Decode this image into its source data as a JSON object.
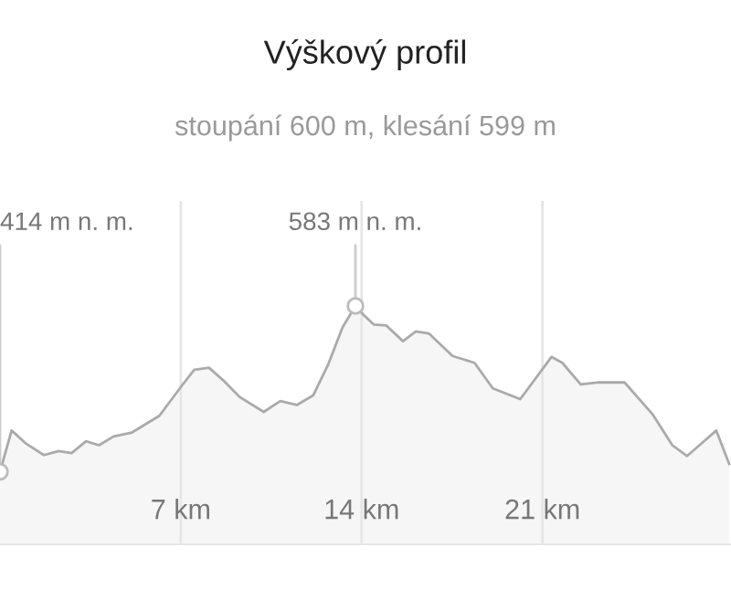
{
  "chart_data": {
    "type": "area",
    "title": "Výškový profil",
    "subtitle": "stoupání 600 m, klesání 599 m",
    "x": [
      0,
      0.45,
      0.99,
      1.7,
      2.27,
      2.77,
      3.33,
      3.83,
      4.4,
      5.11,
      6.17,
      7.02,
      7.52,
      8.09,
      8.65,
      9.29,
      10.21,
      10.85,
      11.49,
      12.13,
      12.7,
      13.26,
      13.76,
      14.11,
      14.47,
      14.96,
      15.6,
      16.1,
      16.6,
      17.52,
      18.37,
      19.08,
      20.14,
      21.35,
      21.77,
      22.48,
      23.19,
      24.18,
      25.25,
      26.03,
      26.6,
      27.73,
      28.23
    ],
    "values": [
      414,
      456,
      443,
      431,
      435,
      433,
      445,
      441,
      450,
      454,
      471,
      501,
      518,
      520,
      507,
      490,
      475,
      486,
      482,
      492,
      523,
      561,
      583,
      573,
      564,
      563,
      547,
      557,
      555,
      532,
      525,
      499,
      488,
      531,
      525,
      503,
      505,
      505,
      473,
      441,
      430,
      456,
      422
    ],
    "value_labels": [
      "414 m n. m.",
      null,
      null,
      null,
      null,
      null,
      null,
      null,
      null,
      null,
      null,
      null,
      null,
      null,
      null,
      null,
      null,
      null,
      null,
      null,
      null,
      null,
      "583 m n. m.",
      null,
      null,
      null,
      null,
      null,
      null,
      null,
      null,
      null,
      null,
      null,
      null,
      null,
      null,
      null,
      null,
      null,
      null,
      null,
      null
    ],
    "color": "#aaaaaa",
    "xlim": [
      0,
      28.3
    ],
    "ylim": [
      340,
      690
    ],
    "xticks": [
      {
        "value": 7,
        "label": "7 km"
      },
      {
        "value": 14,
        "label": "14 km"
      },
      {
        "value": 21,
        "label": "21 km"
      }
    ],
    "tick_labels": "x",
    "grid": "x"
  }
}
